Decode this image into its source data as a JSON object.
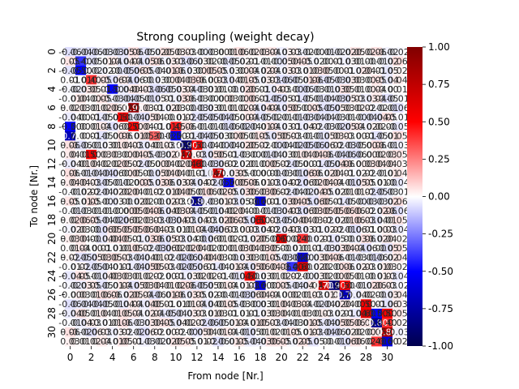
{
  "chart_data": {
    "type": "heatmap",
    "title": "Strong coupling (weight decay)",
    "xlabel": "From node [Nr.]",
    "ylabel": "To node [Nr.]",
    "n": 32,
    "x_tick_labels": [
      "0",
      "2",
      "4",
      "6",
      "8",
      "10",
      "12",
      "14",
      "16",
      "18",
      "20",
      "22",
      "24",
      "26",
      "28",
      "30"
    ],
    "y_tick_labels": [
      "0",
      "2",
      "4",
      "6",
      "8",
      "10",
      "12",
      "14",
      "16",
      "18",
      "20",
      "22",
      "24",
      "26",
      "28",
      "30"
    ],
    "colorbar": {
      "colormap": "seismic",
      "vmin": -1.0,
      "vmax": 1.0,
      "ticks": [
        "1.00",
        "0.75",
        "0.50",
        "0.25",
        "0.00",
        "-0.25",
        "-0.50",
        "-0.75",
        "-1.00"
      ]
    },
    "annotated_cells": true,
    "colors": {
      "neg": "#00004d",
      "mid": "#ffffff",
      "pos": "#800000"
    },
    "strong_cells": [
      {
        "from": 1,
        "to": 1,
        "value": -0.4
      },
      {
        "from": 1,
        "to": 2,
        "value": -0.5
      },
      {
        "from": 2,
        "to": 3,
        "value": 0.4
      },
      {
        "from": 4,
        "to": 4,
        "value": -0.5
      },
      {
        "from": 6,
        "to": 6,
        "value": 0.9
      },
      {
        "from": 5,
        "to": 7,
        "value": 0.5
      },
      {
        "from": 6,
        "to": 8,
        "value": 0.5
      },
      {
        "from": 0,
        "to": 8,
        "value": -0.5
      },
      {
        "from": 0,
        "to": 9,
        "value": -0.7
      },
      {
        "from": 8,
        "to": 9,
        "value": 0.3
      },
      {
        "from": 10,
        "to": 8,
        "value": 0.45
      },
      {
        "from": 10,
        "to": 9,
        "value": -0.5
      },
      {
        "from": 11,
        "to": 10,
        "value": -0.9
      },
      {
        "from": 12,
        "to": 10,
        "value": 0.5
      },
      {
        "from": 2,
        "to": 11,
        "value": 0.5
      },
      {
        "from": 11,
        "to": 11,
        "value": 0.7
      },
      {
        "from": 12,
        "to": 12,
        "value": 0.6
      },
      {
        "from": 14,
        "to": 13,
        "value": 0.7
      },
      {
        "from": 15,
        "to": 14,
        "value": -0.5
      },
      {
        "from": 12,
        "to": 16,
        "value": -0.8
      },
      {
        "from": 18,
        "to": 16,
        "value": -0.6
      },
      {
        "from": 18,
        "to": 18,
        "value": 0.5
      },
      {
        "from": 20,
        "to": 20,
        "value": 0.6
      },
      {
        "from": 22,
        "to": 20,
        "value": 0.4
      },
      {
        "from": 22,
        "to": 22,
        "value": -0.6
      },
      {
        "from": 21,
        "to": 23,
        "value": -0.4
      },
      {
        "from": 22,
        "to": 23,
        "value": 0.6
      },
      {
        "from": 17,
        "to": 24,
        "value": 0.5
      },
      {
        "from": 18,
        "to": 25,
        "value": -0.6
      },
      {
        "from": 24,
        "to": 25,
        "value": 0.7
      },
      {
        "from": 25,
        "to": 25,
        "value": -0.9
      },
      {
        "from": 26,
        "to": 25,
        "value": 0.5
      },
      {
        "from": 26,
        "to": 26,
        "value": -0.7
      },
      {
        "from": 28,
        "to": 27,
        "value": 0.5
      },
      {
        "from": 28,
        "to": 28,
        "value": 0.6
      },
      {
        "from": 29,
        "to": 28,
        "value": -0.5
      },
      {
        "from": 30,
        "to": 28,
        "value": 0.5
      },
      {
        "from": 29,
        "to": 29,
        "value": -0.8
      },
      {
        "from": 30,
        "to": 29,
        "value": 0.4
      },
      {
        "from": 30,
        "to": 30,
        "value": 0.8
      },
      {
        "from": 29,
        "to": 31,
        "value": 0.4
      },
      {
        "from": 30,
        "to": 31,
        "value": -0.6
      }
    ]
  }
}
